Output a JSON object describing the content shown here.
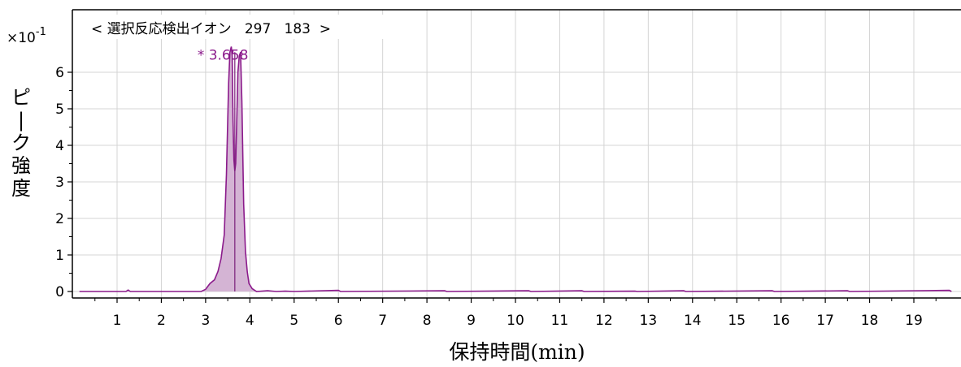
{
  "chart_data": {
    "type": "line",
    "title": "< 選択反応検出イオン   297   183  >",
    "y_multiplier": "×10",
    "y_multiplier_exp": "-1",
    "ylabel": "ピーク強度",
    "xlabel": "保持時間(min)",
    "xlim": [
      0.15,
      19.85
    ],
    "ylim": [
      -0.1,
      6.7
    ],
    "x_ticks": [
      1,
      2,
      3,
      4,
      5,
      6,
      7,
      8,
      9,
      10,
      11,
      12,
      13,
      14,
      15,
      16,
      17,
      18,
      19
    ],
    "y_ticks": [
      0,
      1,
      2,
      3,
      4,
      5,
      6
    ],
    "grid": true,
    "peak_label": "* 3.658",
    "peak_marker_x": 3.66,
    "series": [
      {
        "color": "#8b1a8b",
        "fill": "#d4b4d4",
        "points": [
          [
            0.15,
            0.0
          ],
          [
            1.2,
            0.0
          ],
          [
            1.25,
            0.04
          ],
          [
            1.3,
            0.0
          ],
          [
            2.5,
            0.0
          ],
          [
            2.9,
            0.0
          ],
          [
            3.0,
            0.06
          ],
          [
            3.1,
            0.22
          ],
          [
            3.2,
            0.32
          ],
          [
            3.28,
            0.55
          ],
          [
            3.35,
            0.9
          ],
          [
            3.42,
            1.55
          ],
          [
            3.47,
            3.2
          ],
          [
            3.52,
            5.7
          ],
          [
            3.55,
            6.55
          ],
          [
            3.58,
            6.7
          ],
          [
            3.6,
            6.45
          ],
          [
            3.62,
            4.7
          ],
          [
            3.64,
            3.6
          ],
          [
            3.66,
            3.3
          ],
          [
            3.68,
            3.5
          ],
          [
            3.7,
            4.5
          ],
          [
            3.73,
            6.0
          ],
          [
            3.76,
            6.45
          ],
          [
            3.79,
            6.55
          ],
          [
            3.82,
            5.2
          ],
          [
            3.86,
            2.4
          ],
          [
            3.9,
            1.1
          ],
          [
            3.94,
            0.55
          ],
          [
            3.98,
            0.22
          ],
          [
            4.05,
            0.08
          ],
          [
            4.15,
            0.0
          ],
          [
            4.4,
            0.02
          ],
          [
            4.6,
            0.0
          ],
          [
            4.8,
            0.01
          ],
          [
            5.0,
            0.0
          ],
          [
            6.0,
            0.03
          ],
          [
            6.05,
            0.0
          ],
          [
            8.4,
            0.02
          ],
          [
            8.45,
            0.0
          ],
          [
            10.3,
            0.02
          ],
          [
            10.35,
            0.0
          ],
          [
            11.5,
            0.02
          ],
          [
            11.55,
            0.0
          ],
          [
            12.7,
            0.01
          ],
          [
            12.75,
            0.0
          ],
          [
            13.8,
            0.02
          ],
          [
            13.85,
            0.0
          ],
          [
            15.8,
            0.02
          ],
          [
            15.85,
            0.0
          ],
          [
            17.5,
            0.02
          ],
          [
            17.55,
            0.0
          ],
          [
            19.8,
            0.03
          ],
          [
            19.85,
            0.0
          ]
        ]
      }
    ]
  }
}
